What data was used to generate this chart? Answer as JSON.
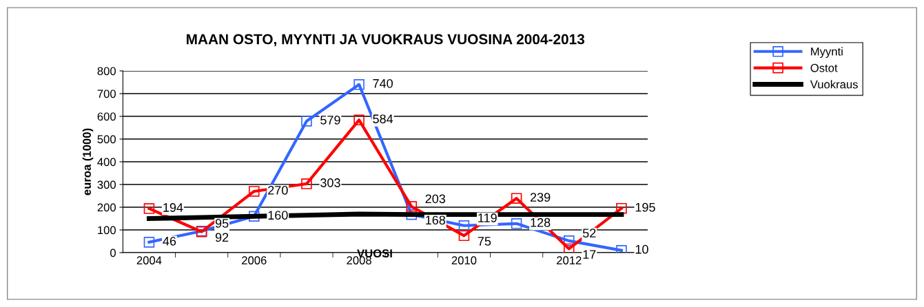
{
  "chart_data": {
    "type": "line",
    "title": "MAAN OSTO, MYYNTI JA VUOKRAUS VUOSINA 2004-2013",
    "xlabel": "VUOSI",
    "ylabel": "euroa (1000)",
    "categories": [
      "2004",
      null,
      "2006",
      null,
      "2008",
      null,
      "2010",
      null,
      "2012",
      null
    ],
    "series": [
      {
        "name": "Myynti",
        "color": "#3366ff",
        "values": [
          46,
          95,
          160,
          579,
          740,
          168,
          119,
          128,
          52,
          10
        ],
        "marker": "square",
        "data_labels": true
      },
      {
        "name": "Ostot",
        "color": "#ff0000",
        "values": [
          194,
          92,
          270,
          303,
          584,
          203,
          75,
          239,
          17,
          195
        ],
        "marker": "square",
        "data_labels": true
      },
      {
        "name": "Vuokraus",
        "color": "#000000",
        "values": [
          150,
          155,
          160,
          165,
          170,
          168,
          168,
          168,
          168,
          168
        ],
        "marker": "none"
      }
    ],
    "ylim": [
      0,
      800
    ],
    "yticks": [
      0,
      100,
      200,
      300,
      400,
      500,
      600,
      700,
      800
    ],
    "grid": "y",
    "legend": "top right",
    "line_style": "solid"
  }
}
